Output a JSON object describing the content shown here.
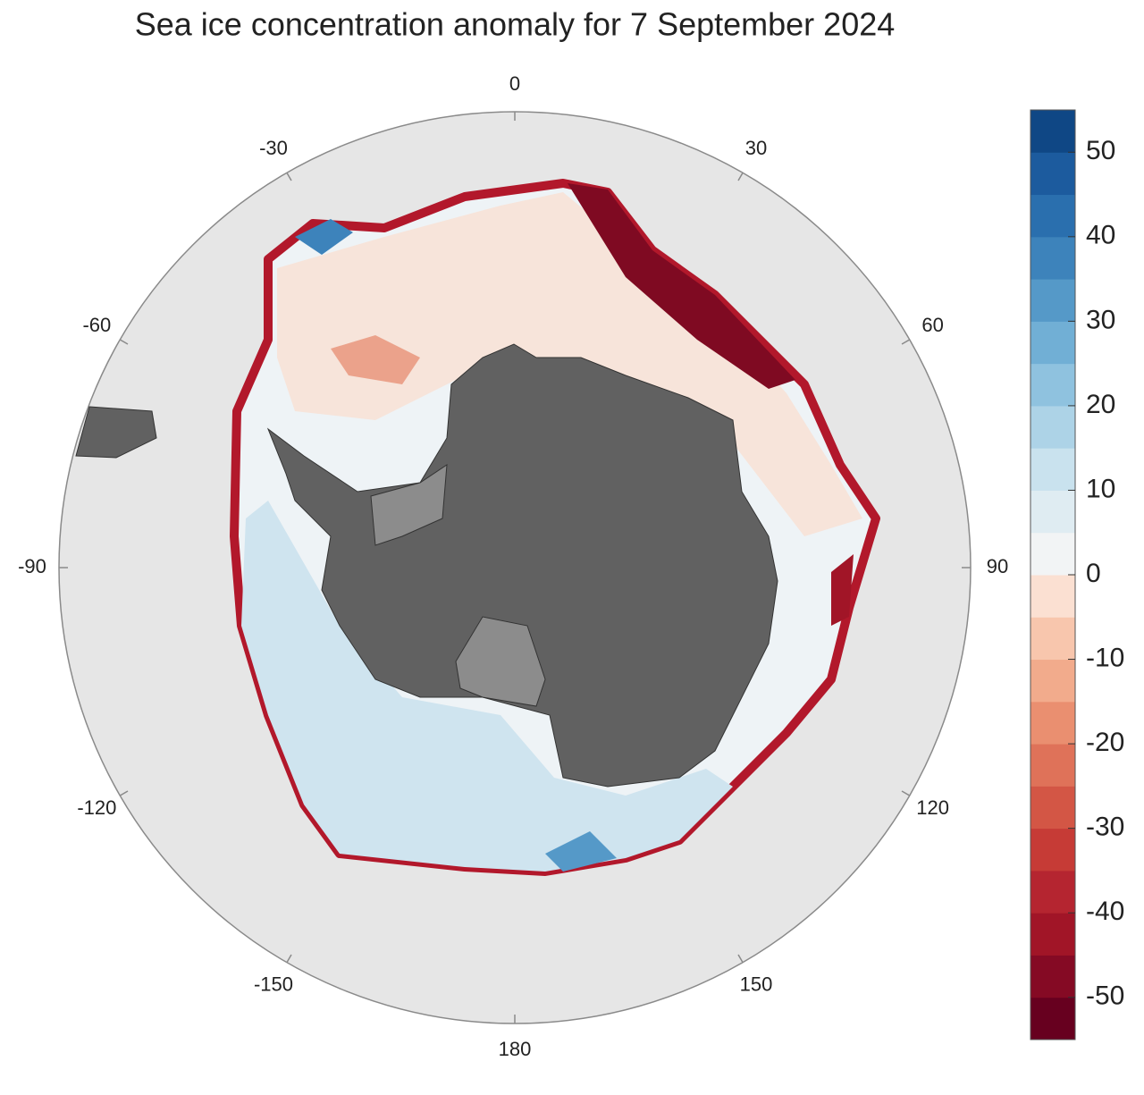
{
  "title": "Sea ice concentration anomaly for 7 September 2024",
  "map": {
    "longitude_labels": [
      0,
      30,
      60,
      90,
      120,
      150,
      180,
      -150,
      -120,
      -90,
      -60,
      -30
    ]
  },
  "colorbar": {
    "clim": [
      -55,
      55
    ],
    "ticks": [
      -50,
      -40,
      -30,
      -20,
      -10,
      0,
      10,
      20,
      30,
      40,
      50
    ],
    "colors": [
      "#67001f",
      "#850a24",
      "#a11527",
      "#b52530",
      "#c63b36",
      "#d35645",
      "#df7259",
      "#ea8f70",
      "#f2ab8c",
      "#f8c6ad",
      "#fbe0d2",
      "#f2f4f5",
      "#dfecf2",
      "#c9e2ee",
      "#add3e7",
      "#8fc2df",
      "#71afd5",
      "#5599c8",
      "#3d83bb",
      "#2a6fae",
      "#1c5b9e",
      "#0f4785"
    ]
  }
}
